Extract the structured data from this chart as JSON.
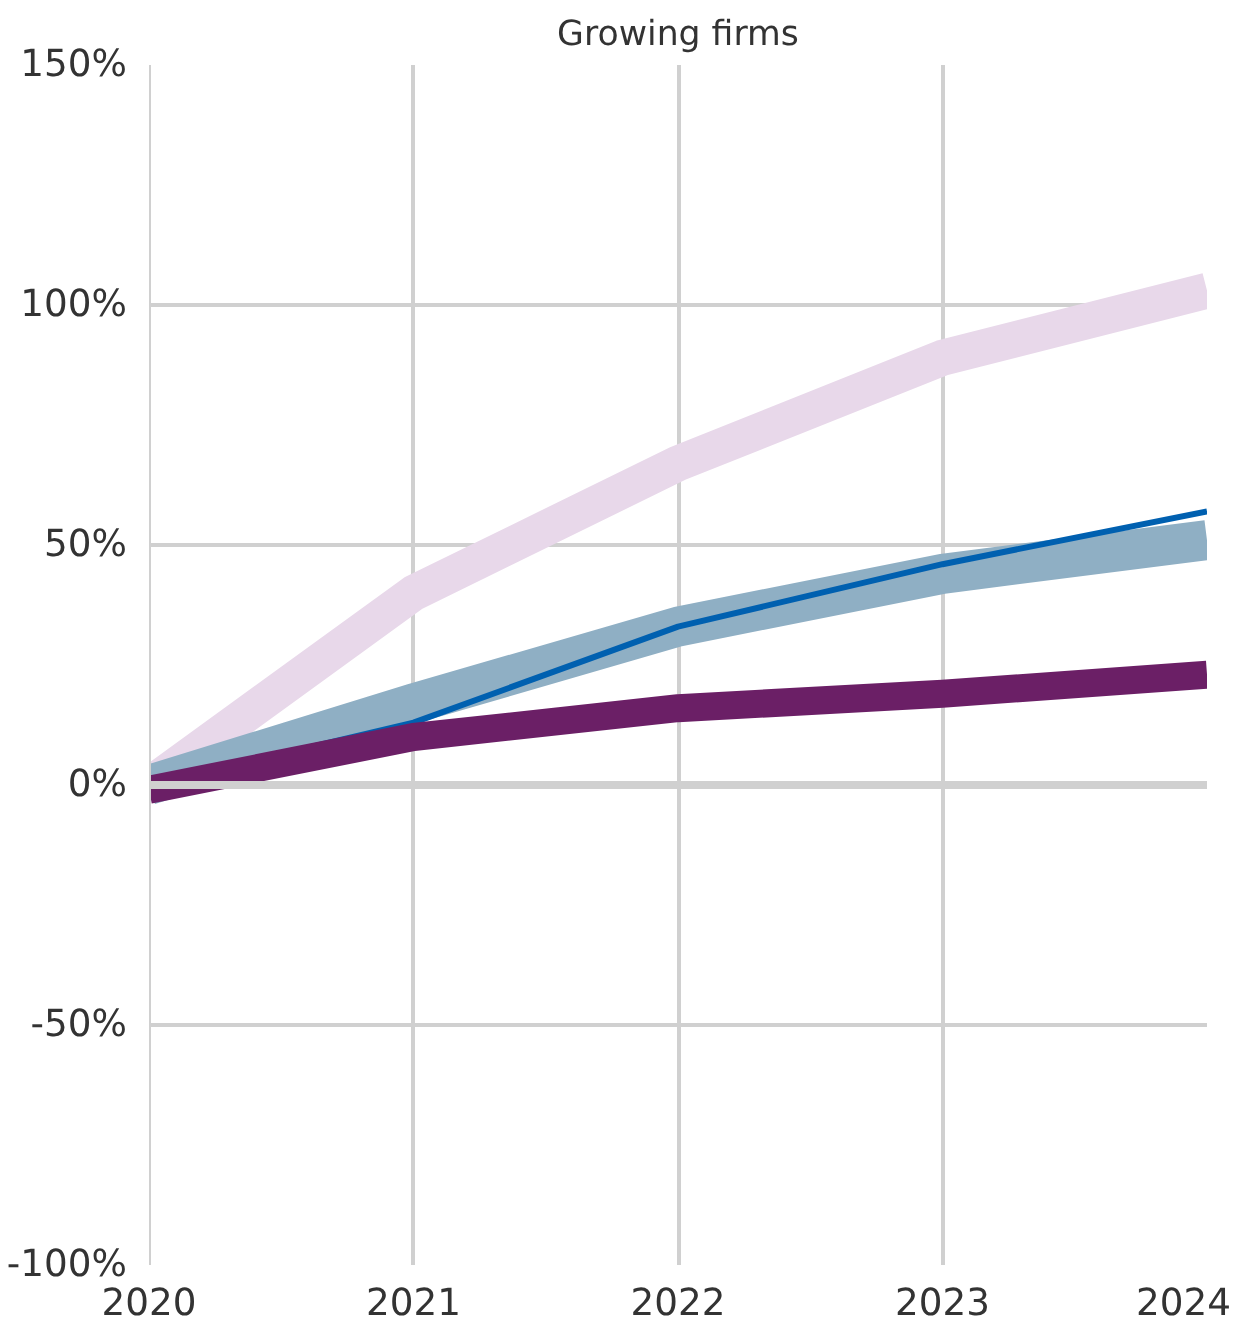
{
  "chart_data": {
    "type": "line",
    "title": "Growing firms",
    "x": [
      2020,
      2021,
      2022,
      2023,
      2024
    ],
    "series": [
      {
        "color": "#e8d8ea",
        "values": [
          0,
          40,
          67,
          89,
          103
        ]
      },
      {
        "color": "#8fafc4",
        "values": [
          0,
          17,
          33,
          44,
          51
        ]
      },
      {
        "color": "#0060b0",
        "values": [
          0,
          13,
          33,
          46,
          57
        ]
      },
      {
        "color": "#6b1f66",
        "values": [
          -1,
          10,
          16,
          19,
          23
        ]
      }
    ],
    "xlim": [
      2020,
      2024
    ],
    "xticks": [
      2020,
      2021,
      2022,
      2023,
      2024
    ],
    "ylim": [
      -100,
      150
    ],
    "yticks": [
      {
        "value": -100,
        "label": "-100%"
      },
      {
        "value": -50,
        "label": "-50%"
      },
      {
        "value": 0,
        "label": "0%"
      },
      {
        "value": 50,
        "label": "50%"
      },
      {
        "value": 100,
        "label": "100%"
      },
      {
        "value": 150,
        "label": "150%"
      }
    ],
    "ref_lines": [
      {
        "axis": "y",
        "value": 0,
        "label": null,
        "color": "#d0d0d0"
      }
    ],
    "grid": true,
    "marker": "none",
    "line_style": "solid"
  }
}
